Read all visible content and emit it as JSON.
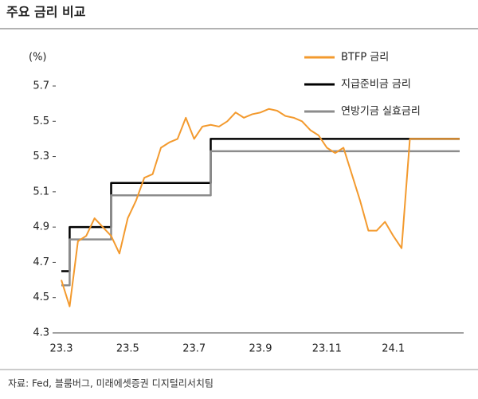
{
  "chart_data": {
    "type": "line",
    "title": "주요 금리 비교",
    "y_label": "(%)",
    "source": "자료: Fed, 블룸버그, 미래에셋증권 디지털리서치팀",
    "categories": [
      "23.3",
      null,
      null,
      null,
      null,
      null,
      null,
      null,
      "23.5",
      null,
      null,
      null,
      null,
      null,
      null,
      null,
      "23.7",
      null,
      null,
      null,
      null,
      null,
      null,
      null,
      "23.9",
      null,
      null,
      null,
      null,
      null,
      null,
      null,
      "23.11",
      null,
      null,
      null,
      null,
      null,
      null,
      null,
      "24.1",
      null,
      null,
      null,
      null,
      null,
      null,
      null,
      null
    ],
    "ylim": [
      4.3,
      5.7
    ],
    "yticks": [
      4.3,
      4.5,
      4.7,
      4.9,
      5.1,
      5.3,
      5.5,
      5.7
    ],
    "legend": "top-right",
    "series": [
      {
        "name": "BTFP 금리",
        "color": "#f39a2e",
        "step": false,
        "values": [
          4.6,
          4.45,
          4.82,
          4.85,
          4.95,
          4.9,
          4.85,
          4.75,
          4.95,
          5.05,
          5.18,
          5.2,
          5.35,
          5.38,
          5.4,
          5.52,
          5.4,
          5.47,
          5.48,
          5.47,
          5.5,
          5.55,
          5.52,
          5.54,
          5.55,
          5.57,
          5.56,
          5.53,
          5.52,
          5.5,
          5.45,
          5.42,
          5.35,
          5.32,
          5.35,
          5.2,
          5.05,
          4.88,
          4.88,
          4.93,
          4.85,
          4.78,
          5.4,
          5.4,
          5.4,
          5.4,
          5.4,
          5.4,
          5.4
        ]
      },
      {
        "name": "지급준비금 금리",
        "color": "#000000",
        "step": true,
        "values": [
          4.65,
          4.9,
          4.9,
          4.9,
          4.9,
          4.9,
          5.15,
          5.15,
          5.15,
          5.15,
          5.15,
          5.15,
          5.15,
          5.15,
          5.15,
          5.15,
          5.15,
          5.15,
          5.4,
          5.4,
          5.4,
          5.4,
          5.4,
          5.4,
          5.4,
          5.4,
          5.4,
          5.4,
          5.4,
          5.4,
          5.4,
          5.4,
          5.4,
          5.4,
          5.4,
          5.4,
          5.4,
          5.4,
          5.4,
          5.4,
          5.4,
          5.4,
          5.4,
          5.4,
          5.4,
          5.4,
          5.4,
          5.4,
          5.4
        ]
      },
      {
        "name": "연방기금 실효금리",
        "color": "#8c8c8c",
        "step": true,
        "values": [
          4.57,
          4.83,
          4.83,
          4.83,
          4.83,
          4.83,
          5.08,
          5.08,
          5.08,
          5.08,
          5.08,
          5.08,
          5.08,
          5.08,
          5.08,
          5.08,
          5.08,
          5.08,
          5.33,
          5.33,
          5.33,
          5.33,
          5.33,
          5.33,
          5.33,
          5.33,
          5.33,
          5.33,
          5.33,
          5.33,
          5.33,
          5.33,
          5.33,
          5.33,
          5.33,
          5.33,
          5.33,
          5.33,
          5.33,
          5.33,
          5.33,
          5.33,
          5.33,
          5.33,
          5.33,
          5.33,
          5.33,
          5.33,
          5.33
        ]
      }
    ]
  }
}
